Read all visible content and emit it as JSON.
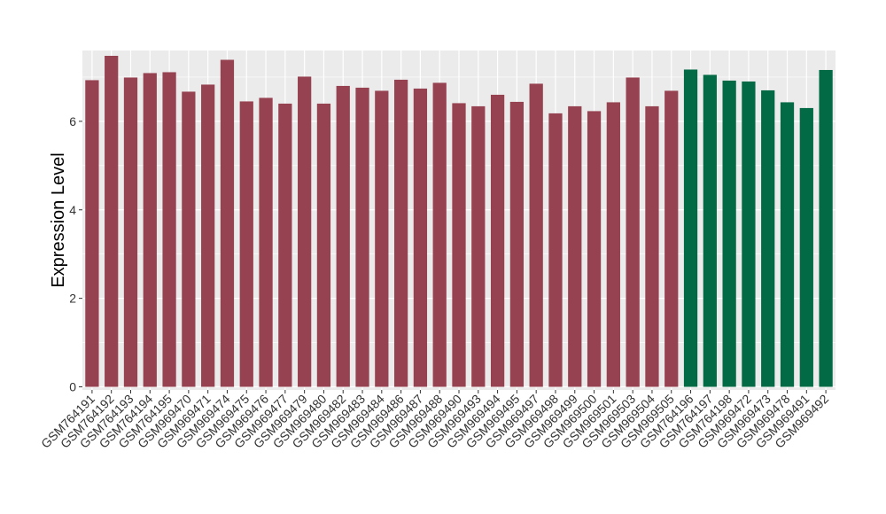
{
  "chart_data": {
    "type": "bar",
    "title": "",
    "xlabel": "",
    "ylabel": "Expression Level",
    "ylim": [
      -0.07,
      7.6
    ],
    "yticks": [
      0,
      2,
      4,
      6
    ],
    "grid": true,
    "legend": "none",
    "categories": [
      "GSM764191",
      "GSM764192",
      "GSM764193",
      "GSM764194",
      "GSM764195",
      "GSM969470",
      "GSM969471",
      "GSM969474",
      "GSM969475",
      "GSM969476",
      "GSM969477",
      "GSM969479",
      "GSM969480",
      "GSM969482",
      "GSM969483",
      "GSM969484",
      "GSM969486",
      "GSM969487",
      "GSM969488",
      "GSM969490",
      "GSM969493",
      "GSM969494",
      "GSM969495",
      "GSM969497",
      "GSM969498",
      "GSM969499",
      "GSM969500",
      "GSM969501",
      "GSM969503",
      "GSM969504",
      "GSM969505",
      "GSM764196",
      "GSM764197",
      "GSM764198",
      "GSM969472",
      "GSM969473",
      "GSM969478",
      "GSM969491",
      "GSM969492"
    ],
    "values": [
      6.93,
      7.48,
      6.99,
      7.09,
      7.11,
      6.67,
      6.83,
      7.39,
      6.45,
      6.53,
      6.4,
      7.01,
      6.4,
      6.8,
      6.76,
      6.69,
      6.94,
      6.74,
      6.87,
      6.41,
      6.34,
      6.6,
      6.44,
      6.85,
      6.18,
      6.34,
      6.23,
      6.43,
      6.99,
      6.34,
      6.69,
      7.17,
      7.05,
      6.92,
      6.9,
      6.7,
      6.43,
      6.3,
      7.16
    ],
    "groups": [
      0,
      0,
      0,
      0,
      0,
      0,
      0,
      0,
      0,
      0,
      0,
      0,
      0,
      0,
      0,
      0,
      0,
      0,
      0,
      0,
      0,
      0,
      0,
      0,
      0,
      0,
      0,
      0,
      0,
      0,
      0,
      1,
      1,
      1,
      1,
      1,
      1,
      1,
      1
    ],
    "colors": [
      "#974250",
      "#026A45"
    ],
    "panel_background": "#EBEBEB",
    "gridline_color": "#FFFFFF"
  }
}
